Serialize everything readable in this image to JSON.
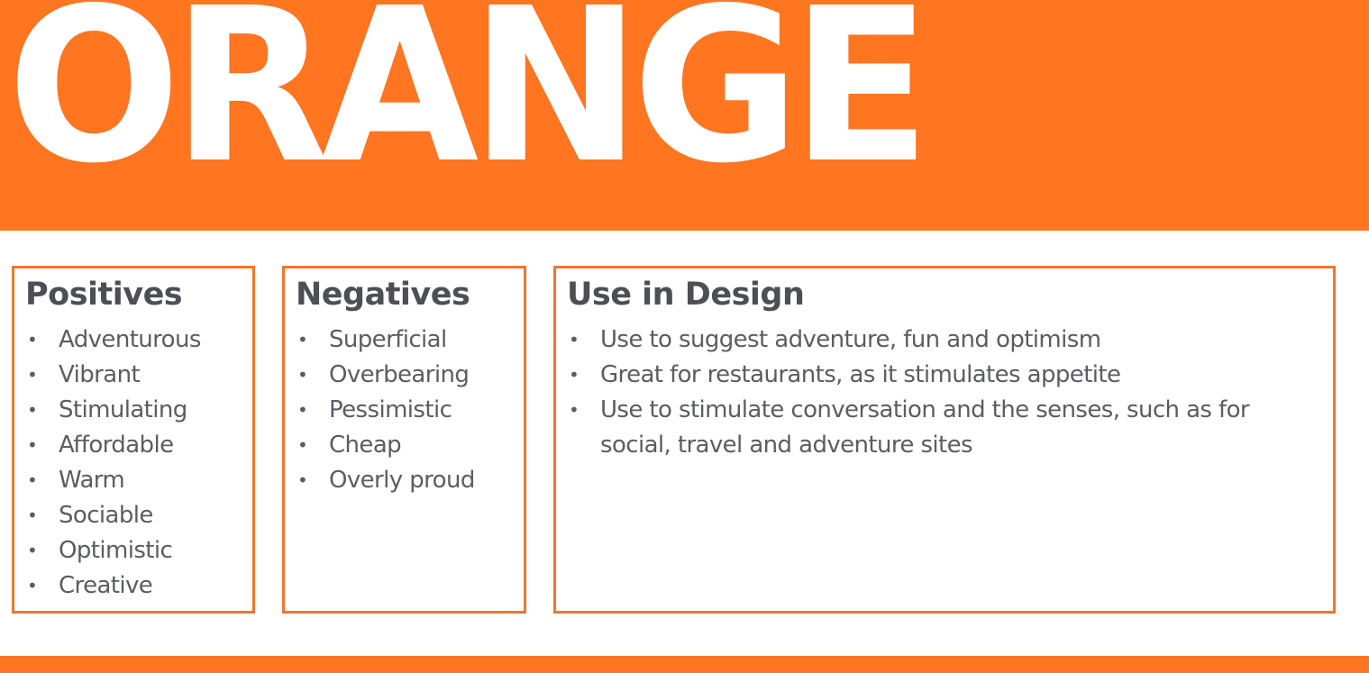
{
  "title": "ORANGE",
  "colors": {
    "accent": "#FF7520",
    "border": "#F0772B",
    "heading": "#4D4F54",
    "text": "#5B5D62"
  },
  "positives": {
    "heading": "Positives",
    "items": [
      "Adventurous",
      "Vibrant",
      "Stimulating",
      "Affordable",
      "Warm",
      "Sociable",
      "Optimistic",
      "Creative"
    ]
  },
  "negatives": {
    "heading": "Negatives",
    "items": [
      "Superficial",
      "Overbearing",
      "Pessimistic",
      "Cheap",
      "Overly proud"
    ]
  },
  "design": {
    "heading": "Use in Design",
    "items": [
      "Use to suggest adventure, fun and optimism",
      "Great for restaurants, as it stimulates appetite",
      "Use to stimulate conversation and the senses, such as for social, travel and adventure sites"
    ]
  }
}
